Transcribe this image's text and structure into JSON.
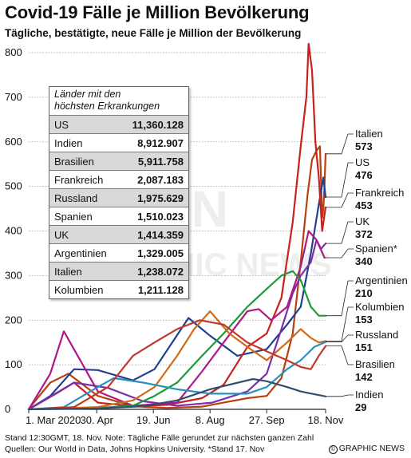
{
  "title": "Covid-19 Fälle je Million Bevölkerung",
  "subtitle": "Tägliche, bestätigte, neue Fälle je Million der Bevölkerung",
  "footer": {
    "line1": "Stand 12:30GMT, 18. Nov. Note: Tägliche Fälle gerundet zur nächsten ganzen Zahl",
    "line2": "Quellen: Our World in Data, Johns Hopkins University. *Stand 17. Nov",
    "credit": "GRAPHIC NEWS",
    "credit_mark": "©"
  },
  "watermark": "GRAPHIC NEWS",
  "table": {
    "title_line1": "Länder mit den",
    "title_line2": "höchsten Erkrankungen",
    "rows": [
      {
        "country": "US",
        "value": "11,360.128"
      },
      {
        "country": "Indien",
        "value": "8,912.907"
      },
      {
        "country": "Brasilien",
        "value": "5,911.758"
      },
      {
        "country": "Frankreich",
        "value": "2,087.183"
      },
      {
        "country": "Russland",
        "value": "1,975.629"
      },
      {
        "country": "Spanien",
        "value": "1,510.023"
      },
      {
        "country": "UK",
        "value": "1,414.359"
      },
      {
        "country": "Argentinien",
        "value": "1,329.005"
      },
      {
        "country": "Italien",
        "value": "1,238.072"
      },
      {
        "country": "Kolumbien",
        "value": "1,211.128"
      }
    ]
  },
  "labels": [
    {
      "name": "Italien",
      "value": "573"
    },
    {
      "name": "US",
      "value": "476"
    },
    {
      "name": "Frankreich",
      "value": "453"
    },
    {
      "name": "UK",
      "value": "372"
    },
    {
      "name": "Spanien*",
      "value": "340"
    },
    {
      "name": "Argentinien",
      "value": "210"
    },
    {
      "name": "Kolumbien",
      "value": "153"
    },
    {
      "name": "Russland",
      "value": "151"
    },
    {
      "name": "Brasilien",
      "value": "142"
    },
    {
      "name": "Indien",
      "value": "29"
    }
  ],
  "chart_data": {
    "type": "line",
    "title": "Covid-19 Fälle je Million Bevölkerung",
    "subtitle": "Tägliche, bestätigte, neue Fälle je Million der Bevölkerung",
    "xlabel": "",
    "ylabel": "",
    "x_ticks": [
      "1. Mar 2020",
      "30. Apr",
      "19. Jun",
      "8. Aug",
      "27. Sep",
      "18. Nov"
    ],
    "xlim": [
      "2020-03-01",
      "2020-11-18"
    ],
    "y_ticks": [
      0,
      100,
      200,
      300,
      400,
      500,
      600,
      700,
      800
    ],
    "ylim": [
      0,
      800
    ],
    "grid": true,
    "series": [
      {
        "name": "Italien",
        "color": "#b7410e",
        "x": [
          "2020-03-01",
          "2020-03-20",
          "2020-04-05",
          "2020-05-01",
          "2020-06-01",
          "2020-07-01",
          "2020-08-01",
          "2020-08-20",
          "2020-09-10",
          "2020-09-27",
          "2020-10-10",
          "2020-10-20",
          "2020-10-27",
          "2020-11-02",
          "2020-11-06",
          "2020-11-10",
          "2020-11-13",
          "2020-11-15",
          "2020-11-16",
          "2020-11-17",
          "2020-11-18"
        ],
        "values": [
          1,
          60,
          80,
          30,
          7,
          3,
          6,
          15,
          25,
          30,
          70,
          170,
          330,
          480,
          560,
          580,
          590,
          430,
          450,
          500,
          573
        ]
      },
      {
        "name": "US",
        "color": "#1f3f8f",
        "x": [
          "2020-03-01",
          "2020-03-20",
          "2020-04-10",
          "2020-05-01",
          "2020-06-01",
          "2020-06-20",
          "2020-07-20",
          "2020-08-08",
          "2020-09-01",
          "2020-09-27",
          "2020-10-15",
          "2020-10-27",
          "2020-11-05",
          "2020-11-12",
          "2020-11-16",
          "2020-11-18"
        ],
        "values": [
          0,
          30,
          90,
          88,
          65,
          90,
          205,
          165,
          120,
          135,
          190,
          230,
          350,
          460,
          520,
          476
        ]
      },
      {
        "name": "Frankreich",
        "color": "#c8201e",
        "x": [
          "2020-03-01",
          "2020-03-25",
          "2020-04-10",
          "2020-05-01",
          "2020-06-01",
          "2020-07-01",
          "2020-08-01",
          "2020-08-20",
          "2020-09-10",
          "2020-09-27",
          "2020-10-10",
          "2020-10-20",
          "2020-10-27",
          "2020-11-01",
          "2020-11-03",
          "2020-11-06",
          "2020-11-09",
          "2020-11-12",
          "2020-11-15",
          "2020-11-18"
        ],
        "values": [
          0,
          35,
          60,
          15,
          7,
          10,
          25,
          55,
          140,
          170,
          250,
          420,
          590,
          700,
          820,
          760,
          600,
          520,
          400,
          453
        ]
      },
      {
        "name": "UK",
        "color": "#7b2fa8",
        "x": [
          "2020-03-01",
          "2020-04-10",
          "2020-05-10",
          "2020-06-10",
          "2020-07-10",
          "2020-08-10",
          "2020-09-10",
          "2020-09-27",
          "2020-10-10",
          "2020-10-20",
          "2020-10-27",
          "2020-11-05",
          "2020-11-10",
          "2020-11-14",
          "2020-11-18"
        ],
        "values": [
          0,
          60,
          48,
          18,
          8,
          15,
          40,
          80,
          180,
          260,
          300,
          330,
          380,
          360,
          372
        ]
      },
      {
        "name": "Spanien*",
        "color": "#b0178a",
        "x": [
          "2020-03-01",
          "2020-03-20",
          "2020-04-01",
          "2020-05-01",
          "2020-06-01",
          "2020-07-10",
          "2020-08-01",
          "2020-08-20",
          "2020-09-10",
          "2020-09-20",
          "2020-10-01",
          "2020-10-15",
          "2020-10-27",
          "2020-11-03",
          "2020-11-10",
          "2020-11-17"
        ],
        "values": [
          0,
          80,
          175,
          40,
          8,
          15,
          85,
          150,
          220,
          225,
          200,
          230,
          320,
          400,
          380,
          340
        ]
      },
      {
        "name": "Argentinien",
        "color": "#1d9a3a",
        "x": [
          "2020-03-01",
          "2020-05-01",
          "2020-06-01",
          "2020-06-20",
          "2020-07-10",
          "2020-08-01",
          "2020-08-20",
          "2020-09-10",
          "2020-09-27",
          "2020-10-10",
          "2020-10-20",
          "2020-10-27",
          "2020-11-05",
          "2020-11-12",
          "2020-11-18"
        ],
        "values": [
          0,
          3,
          8,
          30,
          60,
          120,
          170,
          230,
          270,
          300,
          310,
          290,
          230,
          210,
          210
        ]
      },
      {
        "name": "Kolumbien",
        "color": "#d26a18",
        "x": [
          "2020-03-01",
          "2020-05-01",
          "2020-06-01",
          "2020-06-20",
          "2020-07-10",
          "2020-07-25",
          "2020-08-08",
          "2020-08-25",
          "2020-09-10",
          "2020-09-27",
          "2020-10-15",
          "2020-10-27",
          "2020-11-05",
          "2020-11-12",
          "2020-11-18"
        ],
        "values": [
          0,
          5,
          20,
          50,
          120,
          180,
          220,
          170,
          140,
          110,
          150,
          180,
          160,
          150,
          153
        ]
      },
      {
        "name": "Russland",
        "color": "#2a8fbf",
        "x": [
          "2020-03-01",
          "2020-04-01",
          "2020-05-01",
          "2020-05-15",
          "2020-06-10",
          "2020-07-10",
          "2020-08-08",
          "2020-09-10",
          "2020-09-27",
          "2020-10-15",
          "2020-10-27",
          "2020-11-08",
          "2020-11-18"
        ],
        "values": [
          0,
          5,
          50,
          70,
          60,
          45,
          35,
          35,
          50,
          90,
          110,
          140,
          151
        ]
      },
      {
        "name": "Brasilien",
        "color": "#c0392b",
        "x": [
          "2020-03-01",
          "2020-04-10",
          "2020-05-10",
          "2020-06-01",
          "2020-06-20",
          "2020-07-10",
          "2020-07-30",
          "2020-08-20",
          "2020-09-10",
          "2020-09-27",
          "2020-10-15",
          "2020-10-27",
          "2020-11-05",
          "2020-11-12",
          "2020-11-18"
        ],
        "values": [
          0,
          5,
          50,
          120,
          150,
          180,
          200,
          190,
          150,
          130,
          110,
          95,
          90,
          120,
          142
        ]
      },
      {
        "name": "Indien",
        "color": "#2e4f6e",
        "x": [
          "2020-03-01",
          "2020-05-01",
          "2020-06-10",
          "2020-07-10",
          "2020-08-08",
          "2020-09-15",
          "2020-09-27",
          "2020-10-15",
          "2020-10-27",
          "2020-11-10",
          "2020-11-18"
        ],
        "values": [
          0,
          2,
          7,
          20,
          45,
          68,
          63,
          50,
          40,
          33,
          29
        ]
      }
    ]
  }
}
